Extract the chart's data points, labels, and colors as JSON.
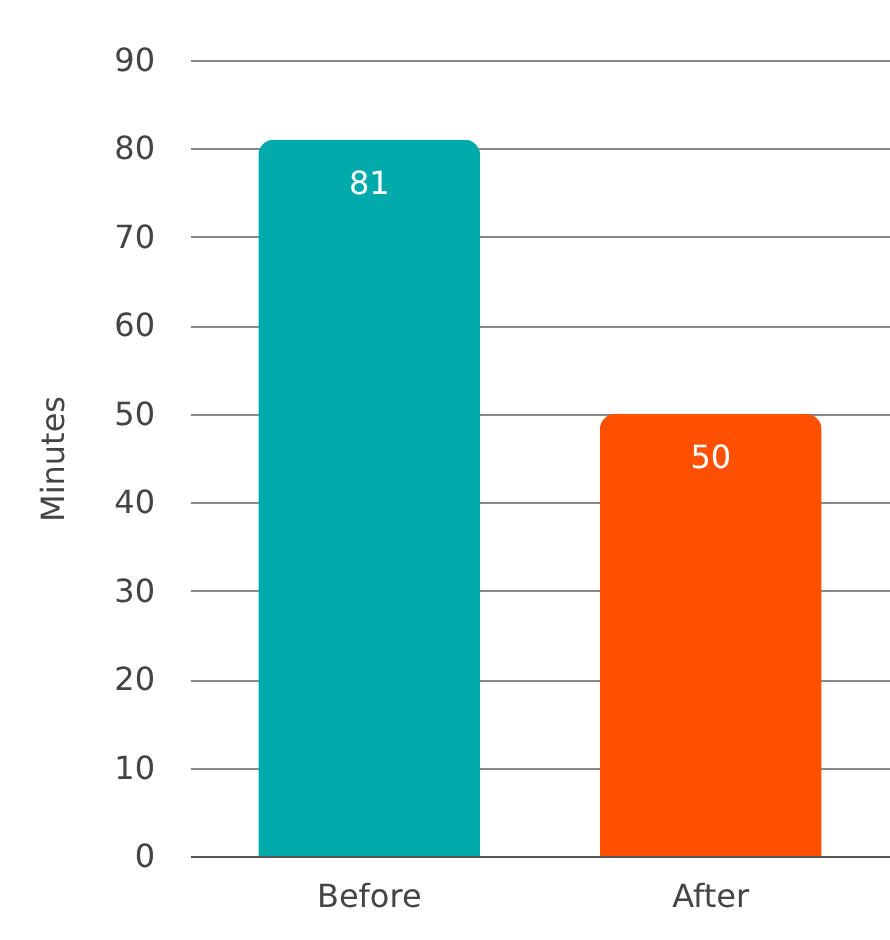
{
  "chart_data": {
    "type": "bar",
    "ylabel": "Minutes",
    "categories": [
      "Before",
      "After"
    ],
    "values": [
      81,
      50
    ],
    "colors": [
      "#00aaaa",
      "#ff5000"
    ],
    "ylim": [
      0,
      90
    ],
    "yticks": [
      0,
      10,
      20,
      30,
      40,
      50,
      60,
      70,
      80,
      90
    ],
    "grid": "y",
    "data_labels": true
  }
}
